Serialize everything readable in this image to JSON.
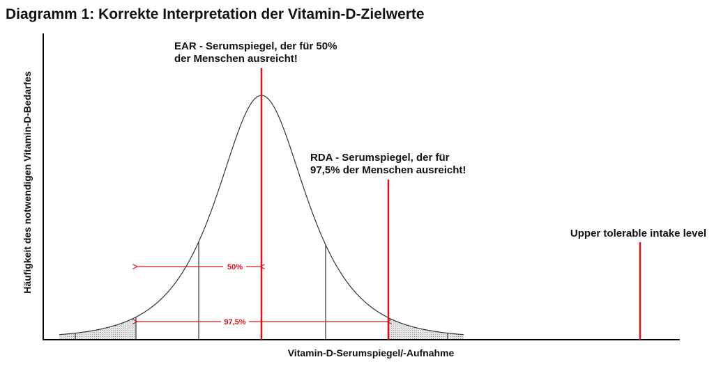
{
  "title": "Diagramm 1: Korrekte Interpretation der Vitamin-D-Zielwerte",
  "y_axis_label": "Häufigkeit des notwendigen Vitamin-D-Bedarfes",
  "x_axis_label": "Vitamin-D-Serumspiegel/-Aufnahme",
  "annotations": {
    "ear_line1": "EAR - Serumspiegel, der für 50%",
    "ear_line2": "der Menschen ausreicht!",
    "rda_line1": "RDA - Serumspiegel, der für",
    "rda_line2": "97,5% der Menschen ausreicht!",
    "ul": "Upper tolerable intake level",
    "range_50": "50%",
    "range_975": "97,5%"
  },
  "colors": {
    "marker": "#e0101a",
    "curve": "#333333",
    "shade": "#cccccc"
  }
}
